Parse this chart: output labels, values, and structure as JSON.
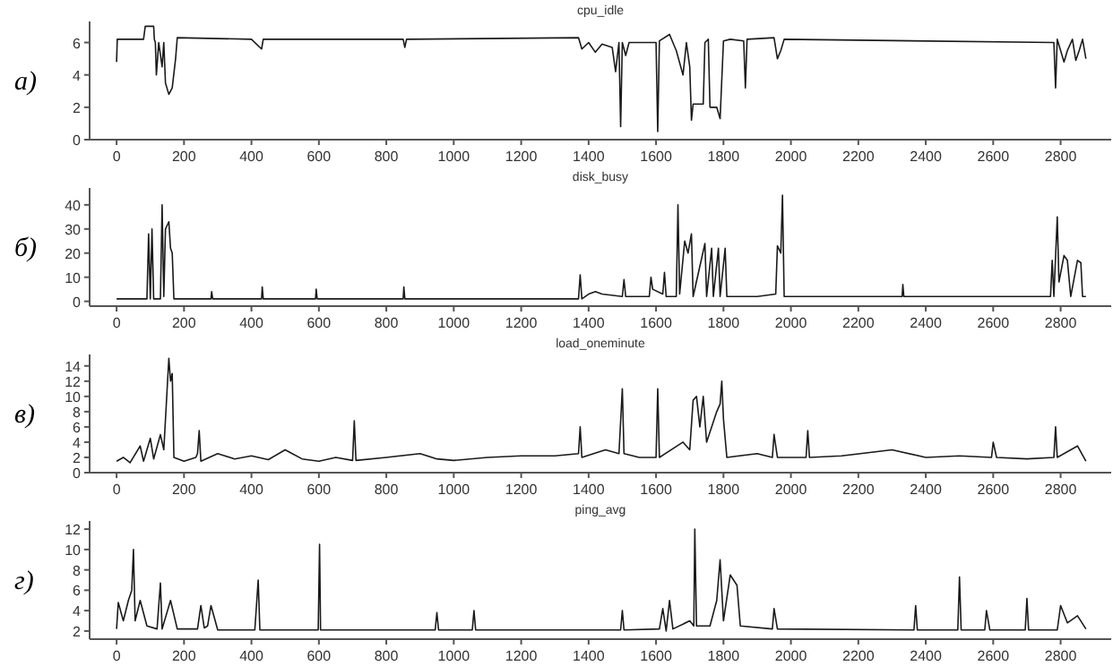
{
  "chart_data": [
    {
      "type": "line",
      "title": "cpu_idle",
      "annotations": [
        "а)"
      ],
      "xlim": [
        -80,
        2950
      ],
      "xticks": [
        0,
        200,
        400,
        600,
        800,
        1000,
        1200,
        1400,
        1600,
        1800,
        2000,
        2200,
        2400,
        2600,
        2800
      ],
      "ylim": [
        0,
        7.3
      ],
      "yticks": [
        0,
        2,
        4,
        6
      ],
      "x": [
        0,
        2,
        80,
        85,
        110,
        112,
        115,
        118,
        125,
        135,
        140,
        145,
        155,
        165,
        175,
        180,
        400,
        430,
        435,
        850,
        855,
        860,
        1370,
        1380,
        1400,
        1420,
        1440,
        1470,
        1480,
        1490,
        1495,
        1500,
        1510,
        1520,
        1600,
        1605,
        1610,
        1640,
        1660,
        1680,
        1690,
        1700,
        1705,
        1710,
        1740,
        1745,
        1755,
        1760,
        1780,
        1790,
        1800,
        1820,
        1860,
        1865,
        1870,
        1950,
        1960,
        1970,
        1980,
        2780,
        2785,
        2790,
        2800,
        2810,
        2820,
        2835,
        2845,
        2855,
        2865,
        2875
      ],
      "values": [
        4.8,
        6.2,
        6.2,
        7.0,
        7.0,
        6.2,
        6.0,
        4.0,
        6.0,
        4.5,
        6.0,
        3.5,
        2.8,
        3.2,
        5.0,
        6.3,
        6.2,
        5.6,
        6.2,
        6.2,
        5.7,
        6.2,
        6.3,
        5.6,
        6.0,
        5.4,
        5.9,
        5.7,
        4.2,
        6.0,
        0.8,
        6.0,
        5.2,
        6.0,
        6.0,
        0.5,
        6.1,
        6.5,
        5.5,
        4.0,
        6.0,
        4.5,
        1.2,
        2.2,
        2.2,
        6.0,
        6.2,
        2.0,
        2.0,
        1.3,
        6.1,
        6.2,
        6.1,
        3.2,
        6.2,
        6.3,
        5.0,
        5.5,
        6.2,
        6.0,
        3.2,
        6.2,
        5.5,
        4.8,
        5.5,
        6.2,
        4.9,
        5.5,
        6.2,
        5.0
      ],
      "color": "#1a1a1a"
    },
    {
      "type": "line",
      "title": "disk_busy",
      "annotations": [
        "б)"
      ],
      "xlim": [
        -80,
        2950
      ],
      "xticks": [
        0,
        200,
        400,
        600,
        800,
        1000,
        1200,
        1400,
        1600,
        1800,
        2000,
        2200,
        2400,
        2600,
        2800
      ],
      "ylim": [
        -2,
        47
      ],
      "yticks": [
        0,
        10,
        20,
        30,
        40
      ],
      "x": [
        0,
        90,
        95,
        100,
        105,
        110,
        130,
        135,
        140,
        145,
        155,
        160,
        165,
        170,
        280,
        282,
        285,
        430,
        432,
        435,
        590,
        592,
        595,
        850,
        852,
        855,
        1370,
        1375,
        1380,
        1400,
        1420,
        1440,
        1500,
        1505,
        1510,
        1580,
        1585,
        1590,
        1620,
        1625,
        1630,
        1660,
        1665,
        1670,
        1685,
        1695,
        1705,
        1710,
        1745,
        1750,
        1765,
        1770,
        1785,
        1790,
        1805,
        1810,
        1900,
        1955,
        1960,
        1970,
        1975,
        1980,
        2330,
        2332,
        2335,
        2770,
        2775,
        2780,
        2790,
        2795,
        2810,
        2820,
        2830,
        2850,
        2860,
        2865,
        2875
      ],
      "values": [
        1,
        1,
        28,
        1,
        30,
        1,
        1,
        40,
        2,
        30,
        33,
        22,
        20,
        1,
        1,
        4,
        1,
        1,
        6,
        1,
        1,
        5,
        1,
        1,
        6,
        1,
        1,
        11,
        1,
        3,
        4,
        3,
        2,
        9,
        2,
        2,
        10,
        5,
        3,
        12,
        2,
        2,
        40,
        3,
        25,
        20,
        28,
        2,
        24,
        2,
        22,
        2,
        22,
        2,
        22,
        2,
        2,
        3,
        23,
        20,
        44,
        2,
        2,
        7,
        2,
        2,
        17,
        2,
        35,
        8,
        19,
        17,
        2,
        17,
        16,
        2,
        2
      ],
      "color": "#1a1a1a"
    },
    {
      "type": "line",
      "title": "load_oneminute",
      "annotations": [
        "в)"
      ],
      "xlim": [
        -80,
        2950
      ],
      "xticks": [
        0,
        200,
        400,
        600,
        800,
        1000,
        1200,
        1400,
        1600,
        1800,
        2000,
        2200,
        2400,
        2600,
        2800
      ],
      "ylim": [
        0,
        15.5
      ],
      "yticks": [
        0,
        2,
        4,
        6,
        8,
        10,
        12,
        14
      ],
      "x": [
        0,
        20,
        40,
        70,
        80,
        100,
        110,
        130,
        140,
        150,
        155,
        160,
        165,
        170,
        200,
        235,
        240,
        245,
        250,
        300,
        350,
        400,
        450,
        500,
        550,
        600,
        650,
        700,
        705,
        710,
        800,
        900,
        950,
        1000,
        1100,
        1200,
        1300,
        1370,
        1375,
        1380,
        1450,
        1490,
        1500,
        1505,
        1550,
        1600,
        1605,
        1610,
        1680,
        1700,
        1710,
        1720,
        1730,
        1740,
        1750,
        1780,
        1790,
        1795,
        1800,
        1810,
        1900,
        1945,
        1950,
        1960,
        2045,
        2050,
        2055,
        2150,
        2300,
        2400,
        2500,
        2595,
        2600,
        2610,
        2700,
        2780,
        2785,
        2790,
        2850,
        2875
      ],
      "values": [
        1.5,
        2,
        1.3,
        3.5,
        1.5,
        4.5,
        1.8,
        5,
        3,
        11,
        15,
        12,
        13,
        2,
        1.5,
        2,
        2.5,
        5.5,
        1.5,
        2.5,
        1.8,
        2.2,
        1.7,
        3,
        1.8,
        1.5,
        2,
        1.6,
        6.8,
        1.6,
        2,
        2.5,
        1.8,
        1.6,
        2,
        2.2,
        2.2,
        2.5,
        6,
        2,
        3,
        2.5,
        11,
        2.5,
        2,
        2,
        11,
        2,
        4,
        3,
        9.5,
        10,
        6,
        10,
        4,
        8,
        9,
        12,
        7,
        2,
        2.5,
        2,
        5,
        2,
        2,
        5.5,
        2,
        2.2,
        3,
        2,
        2.2,
        2,
        4,
        2,
        1.8,
        2,
        6,
        2,
        3.5,
        1.5
      ],
      "color": "#1a1a1a"
    },
    {
      "type": "line",
      "title": "ping_avg",
      "annotations": [
        "г)"
      ],
      "xlim": [
        -80,
        2950
      ],
      "xticks": [
        0,
        200,
        400,
        600,
        800,
        1000,
        1200,
        1400,
        1600,
        1800,
        2000,
        2200,
        2400,
        2600,
        2800
      ],
      "ylim": [
        1.2,
        12.8
      ],
      "yticks": [
        2,
        4,
        6,
        8,
        10,
        12
      ],
      "x": [
        0,
        5,
        20,
        35,
        45,
        50,
        55,
        70,
        90,
        120,
        130,
        135,
        160,
        180,
        240,
        250,
        260,
        270,
        280,
        300,
        410,
        420,
        425,
        598,
        602,
        605,
        945,
        950,
        955,
        1055,
        1060,
        1065,
        1495,
        1500,
        1505,
        1610,
        1620,
        1630,
        1640,
        1650,
        1700,
        1712,
        1715,
        1720,
        1760,
        1780,
        1790,
        1800,
        1820,
        1840,
        1850,
        1945,
        1950,
        1960,
        2365,
        2370,
        2375,
        2495,
        2500,
        2505,
        2575,
        2580,
        2590,
        2695,
        2700,
        2705,
        2790,
        2800,
        2820,
        2850,
        2875
      ],
      "values": [
        2.2,
        4.8,
        3,
        5,
        6,
        10,
        3,
        5,
        2.5,
        2.2,
        6.7,
        2.2,
        5,
        2.2,
        2.2,
        4.5,
        2.3,
        2.5,
        4.5,
        2.1,
        2.1,
        7,
        2.1,
        2.1,
        10.5,
        2.1,
        2.1,
        3.8,
        2.1,
        2.1,
        4,
        2.1,
        2.1,
        4,
        2.1,
        2.2,
        4.2,
        2,
        5,
        2.2,
        3,
        2.5,
        12,
        2.5,
        2.5,
        5,
        9,
        3,
        7.5,
        6.5,
        2.5,
        2.2,
        4.2,
        2.2,
        2.1,
        4.5,
        2.1,
        2.1,
        7.3,
        2.1,
        2.1,
        4,
        2.1,
        2.1,
        5.2,
        2.1,
        2.1,
        4.5,
        2.8,
        3.5,
        2.2
      ],
      "color": "#1a1a1a"
    }
  ]
}
